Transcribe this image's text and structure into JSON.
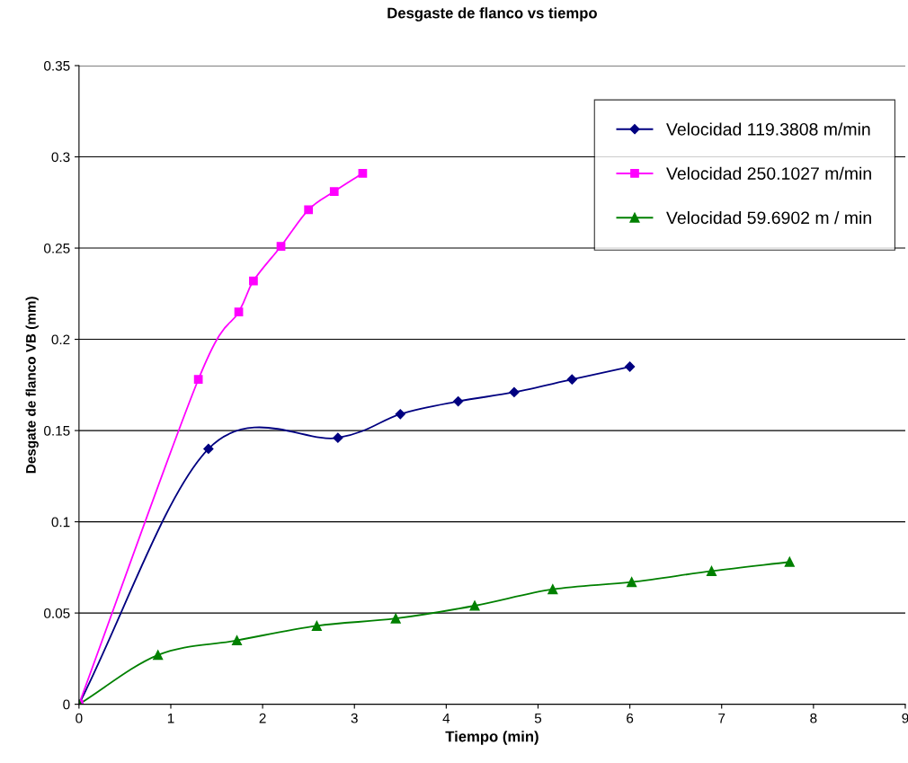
{
  "chart_data": {
    "type": "line",
    "title": "Desgaste de flanco vs tiempo",
    "xlabel": "Tiempo (min)",
    "ylabel": "Desgate de flanco VB (mm)",
    "xlim": [
      0,
      9
    ],
    "xticks": [
      0,
      1,
      2,
      3,
      4,
      5,
      6,
      7,
      8,
      9
    ],
    "ylim": [
      0,
      0.35
    ],
    "yticks": [
      0,
      0.05,
      0.1,
      0.15,
      0.2,
      0.25,
      0.3,
      0.35
    ],
    "grid": "y",
    "legend": "top right",
    "line_style": "solid",
    "series": [
      {
        "name": "Velocidad 119.3808 m/min",
        "color": "#000080",
        "marker": "diamond",
        "x": [
          0,
          1.41,
          2.82,
          3.5,
          4.13,
          4.74,
          5.37,
          6.0
        ],
        "values": [
          0,
          0.14,
          0.146,
          0.159,
          0.166,
          0.171,
          0.178,
          0.185
        ]
      },
      {
        "name": "Velocidad 250.1027 m/min",
        "color": "#ff00ff",
        "marker": "square",
        "x": [
          0,
          1.3,
          1.74,
          1.9,
          2.2,
          2.5,
          2.78,
          3.09
        ],
        "values": [
          0,
          0.178,
          0.215,
          0.232,
          0.251,
          0.271,
          0.281,
          0.291
        ]
      },
      {
        "name": "Velocidad 59.6902 m / min",
        "color": "#008000",
        "marker": "triangle",
        "x": [
          0,
          0.86,
          1.72,
          2.59,
          3.45,
          4.31,
          5.16,
          6.02,
          6.89,
          7.74
        ],
        "values": [
          0,
          0.027,
          0.035,
          0.043,
          0.047,
          0.054,
          0.063,
          0.067,
          0.073,
          0.078
        ]
      }
    ]
  }
}
